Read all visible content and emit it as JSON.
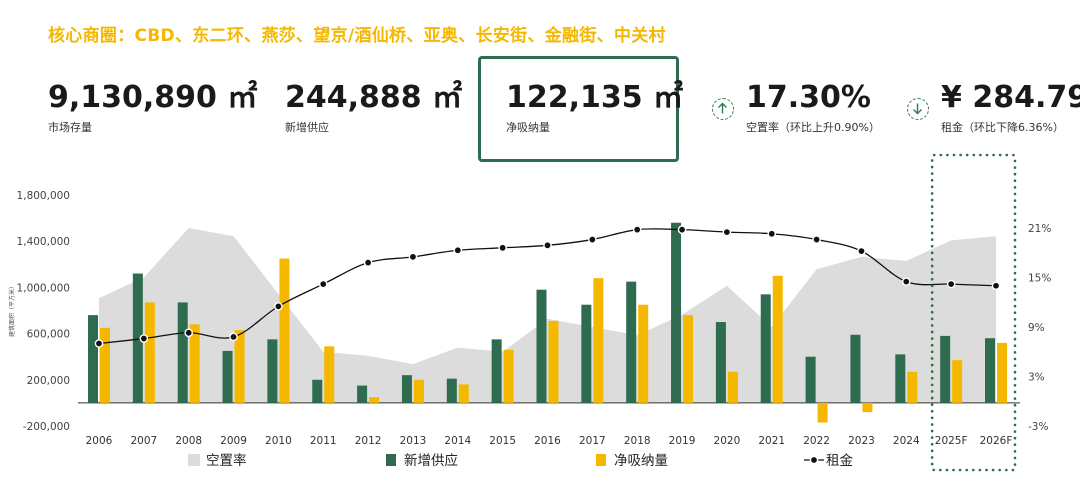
{
  "header": {
    "title": "核心商圈：CBD、东二环、燕莎、望京/酒仙桥、亚奥、长安街、金融街、中关村"
  },
  "kpis": [
    {
      "value": "9,130,890 ㎡",
      "label": "市场存量"
    },
    {
      "value": "244,888 ㎡",
      "label": "新增供应"
    },
    {
      "value": "122,135 ㎡",
      "label": "净吸纳量",
      "highlighted": true
    },
    {
      "value": "17.30%",
      "label": "空置率（环比上升0.90%）",
      "trend_icon": "arrow-up-circle-icon"
    },
    {
      "value": "¥ 284.79",
      "label": "租金（环比下降6.36%）",
      "trend_icon": "arrow-down-circle-icon"
    }
  ],
  "colors": {
    "headline": "#f5b800",
    "supply": "#2e6b4f",
    "absorption": "#f5b800",
    "vacancy": "#dcdcdc",
    "rent_line": "#111111",
    "accent_border": "#2e6b4f"
  },
  "chart_data": {
    "type": "bar",
    "categories": [
      "2006",
      "2007",
      "2008",
      "2009",
      "2010",
      "2011",
      "2012",
      "2013",
      "2014",
      "2015",
      "2016",
      "2017",
      "2018",
      "2019",
      "2020",
      "2021",
      "2022",
      "2023",
      "2024",
      "2025F",
      "2026F"
    ],
    "left_axis": {
      "label": "建筑面积（平方米）",
      "ticks": [
        "-200,000",
        "200,000",
        "600,000",
        "1,000,000",
        "1,400,000",
        "1,800,000"
      ],
      "range": [
        -200000,
        1800000
      ]
    },
    "right_axis": {
      "ticks": [
        "-3%",
        "3%",
        "9%",
        "15%",
        "21%"
      ],
      "range": [
        -3,
        21
      ]
    },
    "series": [
      {
        "name": "新增供应",
        "kind": "bar",
        "values": [
          760000,
          1120000,
          870000,
          450000,
          550000,
          200000,
          150000,
          240000,
          210000,
          550000,
          980000,
          850000,
          1050000,
          1560000,
          700000,
          940000,
          400000,
          590000,
          420000,
          580000,
          560000
        ]
      },
      {
        "name": "净吸纳量",
        "kind": "bar",
        "values": [
          650000,
          870000,
          680000,
          630000,
          1250000,
          490000,
          50000,
          200000,
          160000,
          460000,
          710000,
          1080000,
          850000,
          760000,
          270000,
          1100000,
          -170000,
          -80000,
          270000,
          370000,
          520000
        ]
      },
      {
        "name": "空置率",
        "kind": "area",
        "values": [
          12.5,
          15,
          21,
          20,
          13,
          6,
          5.5,
          4.5,
          6.5,
          6,
          10,
          9,
          8,
          10.5,
          14,
          9,
          16,
          17.5,
          17,
          19.5,
          20
        ]
      },
      {
        "name": "租金",
        "kind": "line",
        "values": [
          7,
          7.6,
          8.3,
          7.8,
          11.5,
          14.2,
          16.8,
          17.5,
          18.3,
          18.6,
          18.9,
          19.6,
          20.8,
          20.8,
          20.5,
          20.3,
          19.6,
          18.2,
          14.5,
          14.2,
          14
        ]
      }
    ],
    "forecast_highlight": [
      "2025F",
      "2026F"
    ],
    "legend": {
      "position": "bottom",
      "items": [
        "空置率",
        "新增供应",
        "净吸纳量",
        "租金"
      ]
    }
  }
}
